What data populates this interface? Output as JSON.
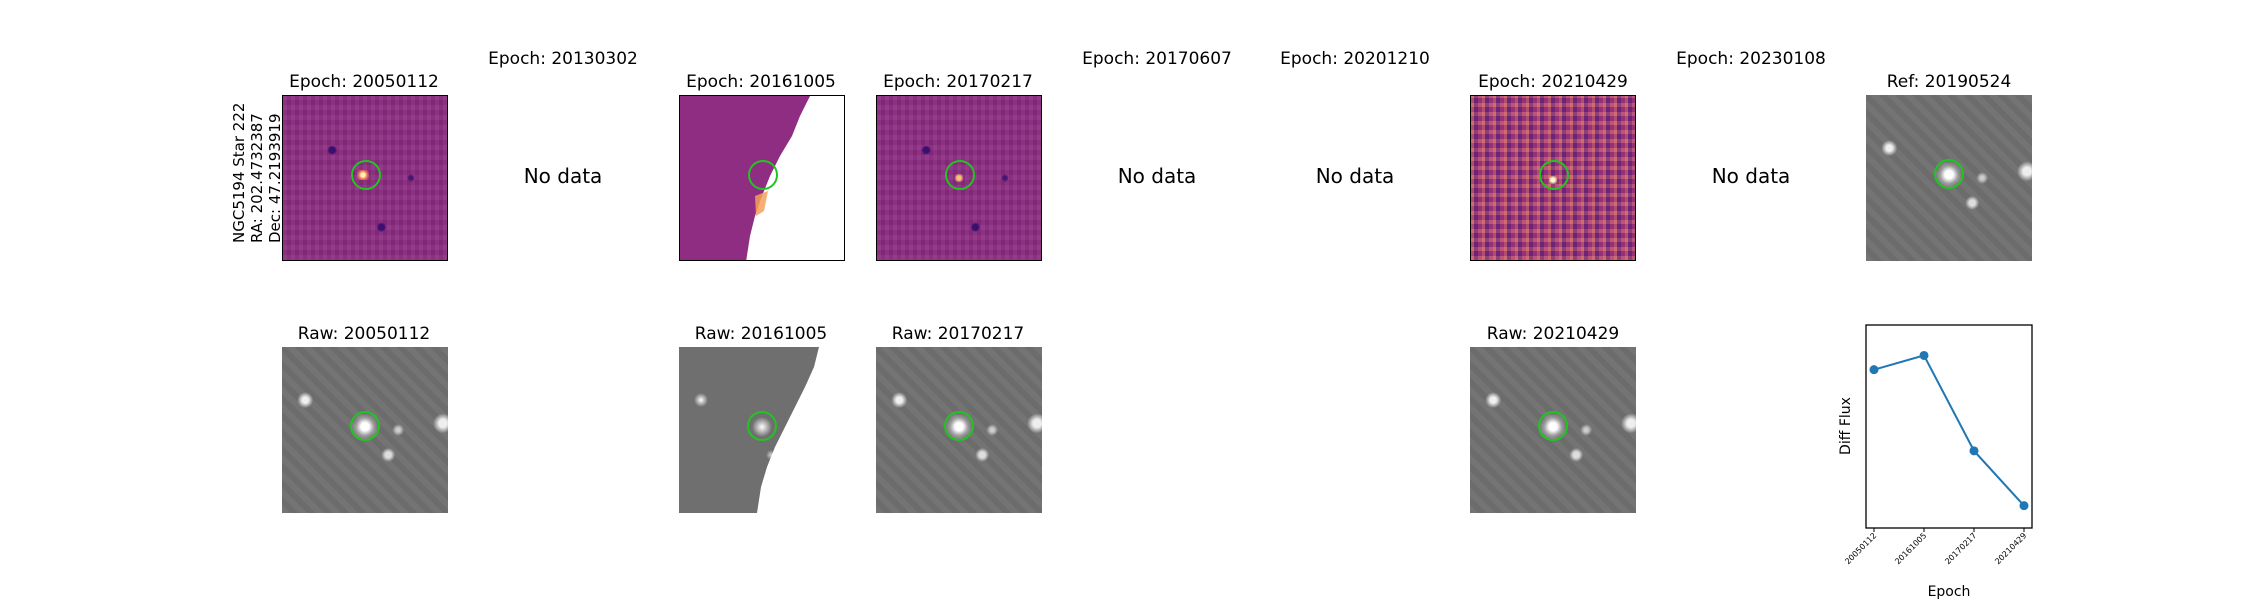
{
  "star_label": {
    "line1": "NGC5194 Star 222",
    "line2": "RA: 202.4732387",
    "line3": "Dec: 47.2193919"
  },
  "top_row": [
    {
      "title": "Epoch: 20050112",
      "has_data": true
    },
    {
      "title": "Epoch: 20130302",
      "has_data": false,
      "no_data": "No data"
    },
    {
      "title": "Epoch: 20161005",
      "has_data": true
    },
    {
      "title": "Epoch: 20170217",
      "has_data": true
    },
    {
      "title": "Epoch: 20170607",
      "has_data": false,
      "no_data": "No data"
    },
    {
      "title": "Epoch: 20201210",
      "has_data": false,
      "no_data": "No data"
    },
    {
      "title": "Epoch: 20210429",
      "has_data": true
    },
    {
      "title": "Epoch: 20230108",
      "has_data": false,
      "no_data": "No data"
    },
    {
      "title": "Ref: 20190524",
      "has_data": true
    }
  ],
  "bottom_row": [
    {
      "title": "Raw: 20050112"
    },
    {
      "title": "Raw: 20161005"
    },
    {
      "title": "Raw: 20170217"
    },
    {
      "title": "Raw: 20210429"
    }
  ],
  "chart_data": {
    "type": "line",
    "categories": [
      "20050112",
      "20161005",
      "20170217",
      "20210429"
    ],
    "values": [
      0.78,
      0.85,
      0.38,
      0.11
    ],
    "ylim": [
      0,
      1
    ],
    "xlabel": "Epoch",
    "ylabel": "Diff Flux",
    "color": "#1f77b4",
    "grid": false,
    "yticks_visible": false
  }
}
